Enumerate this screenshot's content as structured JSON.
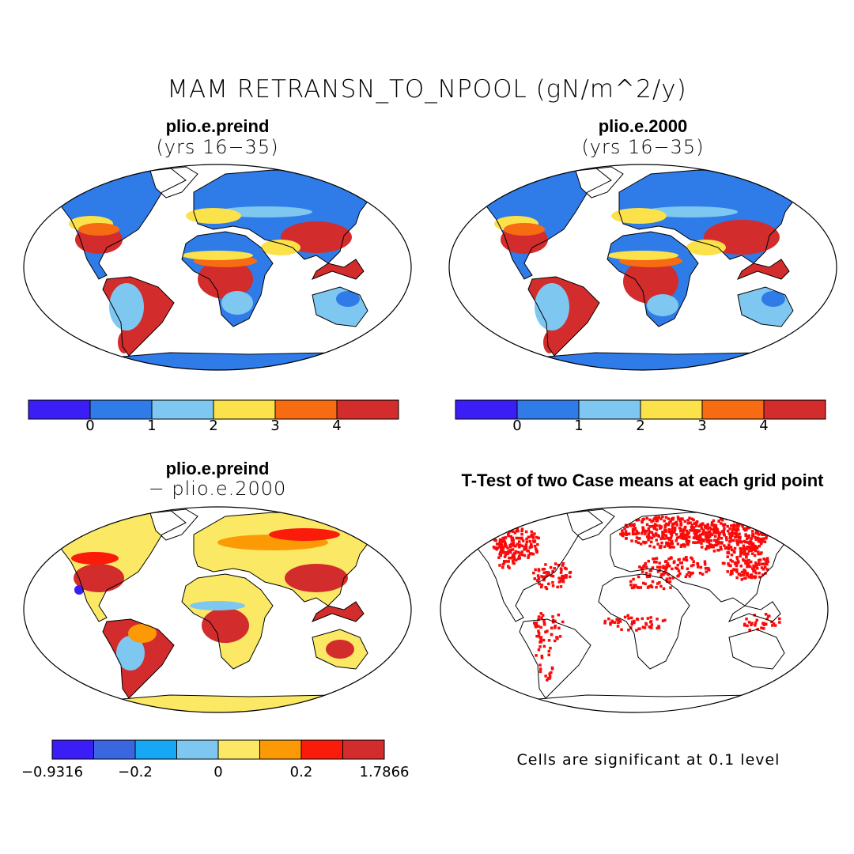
{
  "title": "MAM RETRANSN_TO_NPOOL (gN/m^2/y)",
  "colors": {
    "c0": "#3b1ef5",
    "c1": "#2f7be8",
    "c2": "#7ec7f0",
    "c3": "#fbe14a",
    "c4": "#f76b12",
    "c5": "#d22c2c",
    "d0": "#3b1ef5",
    "d1": "#3a66e0",
    "d2": "#16a7f5",
    "d3": "#7ec7f0",
    "d4": "#fbe864",
    "d5": "#fc9a06",
    "d6": "#fa1b0b",
    "d7": "#d22c2c",
    "sig": "#fa0a0a"
  },
  "panels": {
    "p1": {
      "title": "plio.e.preind",
      "subtitle": "(yrs 16−35)",
      "colorbar_labels": [
        "0",
        "1",
        "2",
        "3",
        "4"
      ]
    },
    "p2": {
      "title": "plio.e.2000",
      "subtitle": "(yrs 16−35)",
      "colorbar_labels": [
        "0",
        "1",
        "2",
        "3",
        "4"
      ]
    },
    "p3": {
      "title": "plio.e.preind",
      "subtitle": "− plio.e.2000",
      "colorbar_labels": [
        "−0.9316",
        "−0.2",
        "0",
        "0.2",
        "1.7866"
      ]
    },
    "p4": {
      "title": "T-Test of two Case means at each grid point",
      "note": "Cells are significant at 0.1 level"
    }
  }
}
